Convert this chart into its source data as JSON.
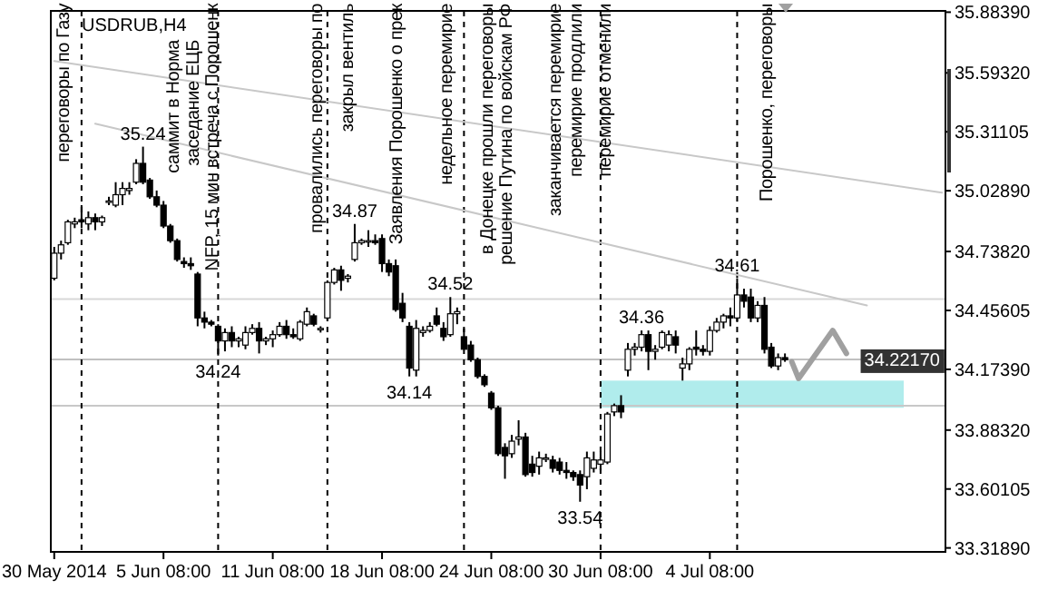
{
  "chart_data": {
    "type": "candlestick",
    "title": "USDRUB,H4",
    "categories": [
      "30 May 2014",
      null,
      null,
      null,
      null,
      null,
      null,
      null,
      null,
      null,
      null,
      null,
      null,
      null,
      null,
      null,
      "5 Jun 08:00",
      null,
      null,
      null,
      null,
      null,
      null,
      null,
      null,
      null,
      null,
      null,
      null,
      null,
      null,
      null,
      "11 Jun 08:00",
      null,
      null,
      null,
      null,
      null,
      null,
      null,
      null,
      null,
      null,
      null,
      null,
      null,
      null,
      null,
      "18 Jun 08:00",
      null,
      null,
      null,
      null,
      null,
      null,
      null,
      null,
      null,
      null,
      null,
      null,
      null,
      null,
      null,
      "24 Jun 08:00",
      null,
      null,
      null,
      null,
      null,
      null,
      null,
      null,
      null,
      null,
      null,
      null,
      null,
      null,
      null,
      "30 Jun 08:00",
      null,
      null,
      null,
      null,
      null,
      null,
      null,
      null,
      null,
      null,
      null,
      null,
      null,
      null,
      null,
      "4 Jul 08:00",
      null,
      null,
      null,
      null,
      null,
      null,
      null,
      null,
      null,
      null,
      null,
      null,
      null,
      null,
      null,
      null,
      null,
      null,
      null,
      null,
      null,
      null,
      null,
      null,
      null,
      null,
      null,
      null,
      null,
      null,
      null,
      null,
      null,
      null
    ],
    "ohlc": [
      [
        34.61,
        34.76,
        34.6,
        34.73
      ],
      [
        34.73,
        34.79,
        34.7,
        34.77
      ],
      [
        34.78,
        34.89,
        34.77,
        34.88
      ],
      [
        34.87,
        34.9,
        34.85,
        34.88
      ],
      [
        34.89,
        34.96,
        34.85,
        34.88
      ],
      [
        34.87,
        34.93,
        34.84,
        34.9
      ],
      [
        34.9,
        34.92,
        34.84,
        34.88
      ],
      [
        34.88,
        34.91,
        34.86,
        34.9
      ],
      [
        34.98,
        35.0,
        34.96,
        34.98
      ],
      [
        34.96,
        35.07,
        34.95,
        35.01
      ],
      [
        35.01,
        35.07,
        34.96,
        35.04
      ],
      [
        35.03,
        35.07,
        35.01,
        35.04
      ],
      [
        35.07,
        35.18,
        35.06,
        35.16
      ],
      [
        35.16,
        35.24,
        35.06,
        35.07
      ],
      [
        35.08,
        35.09,
        34.99,
        35.0
      ],
      [
        35.0,
        35.03,
        34.95,
        34.96
      ],
      [
        34.96,
        34.98,
        34.85,
        34.86
      ],
      [
        34.86,
        34.87,
        34.78,
        34.79
      ],
      [
        34.79,
        34.8,
        34.69,
        34.7
      ],
      [
        34.69,
        34.71,
        34.66,
        34.68
      ],
      [
        34.68,
        34.71,
        34.65,
        34.67
      ],
      [
        34.63,
        34.64,
        34.38,
        34.42
      ],
      [
        34.42,
        34.45,
        34.37,
        34.4
      ],
      [
        34.4,
        34.41,
        34.38,
        34.39
      ],
      [
        34.38,
        34.39,
        34.24,
        34.31
      ],
      [
        34.31,
        34.37,
        34.26,
        34.35
      ],
      [
        34.35,
        34.38,
        34.28,
        34.31
      ],
      [
        34.31,
        34.33,
        34.28,
        34.32
      ],
      [
        34.29,
        34.38,
        34.27,
        34.35
      ],
      [
        34.35,
        34.39,
        34.34,
        34.37
      ],
      [
        34.37,
        34.4,
        34.25,
        34.31
      ],
      [
        34.31,
        34.33,
        34.29,
        34.32
      ],
      [
        34.32,
        34.36,
        34.28,
        34.34
      ],
      [
        34.34,
        34.4,
        34.33,
        34.38
      ],
      [
        34.38,
        34.41,
        34.32,
        34.34
      ],
      [
        34.34,
        34.37,
        34.32,
        34.33
      ],
      [
        34.32,
        34.41,
        34.31,
        34.4
      ],
      [
        34.39,
        34.47,
        34.38,
        34.45
      ],
      [
        34.43,
        34.44,
        34.38,
        34.39
      ],
      [
        34.37,
        34.38,
        34.35,
        34.37
      ],
      [
        34.42,
        34.6,
        34.41,
        34.59
      ],
      [
        34.59,
        34.66,
        34.58,
        34.65
      ],
      [
        34.65,
        34.67,
        34.55,
        34.6
      ],
      [
        34.61,
        34.63,
        34.59,
        34.62
      ],
      [
        34.7,
        34.87,
        34.69,
        34.78
      ],
      [
        34.78,
        34.8,
        34.77,
        34.79
      ],
      [
        34.79,
        34.84,
        34.76,
        34.79
      ],
      [
        34.79,
        34.82,
        34.77,
        34.78
      ],
      [
        34.8,
        34.82,
        34.64,
        34.68
      ],
      [
        34.68,
        34.7,
        34.62,
        34.64
      ],
      [
        34.67,
        34.7,
        34.45,
        34.46
      ],
      [
        34.49,
        34.54,
        34.4,
        34.42
      ],
      [
        34.38,
        34.4,
        34.14,
        34.18
      ],
      [
        34.17,
        34.41,
        34.14,
        34.37
      ],
      [
        34.35,
        34.38,
        34.33,
        34.36
      ],
      [
        34.36,
        34.4,
        34.35,
        34.38
      ],
      [
        34.43,
        34.47,
        34.38,
        34.39
      ],
      [
        34.37,
        34.4,
        34.31,
        34.33
      ],
      [
        34.34,
        34.52,
        34.33,
        34.44
      ],
      [
        34.44,
        34.47,
        34.39,
        34.45
      ],
      [
        34.33,
        34.37,
        34.27,
        34.27
      ],
      [
        34.29,
        34.31,
        34.21,
        34.22
      ],
      [
        34.22,
        34.23,
        34.13,
        34.14
      ],
      [
        34.14,
        34.15,
        34.09,
        34.1
      ],
      [
        34.06,
        34.07,
        33.98,
        33.99
      ],
      [
        33.99,
        34.0,
        33.76,
        33.77
      ],
      [
        33.8,
        33.82,
        33.65,
        33.76
      ],
      [
        33.77,
        33.86,
        33.75,
        33.83
      ],
      [
        33.84,
        33.93,
        33.81,
        33.85
      ],
      [
        33.85,
        33.87,
        33.66,
        33.67
      ],
      [
        33.72,
        33.76,
        33.66,
        33.68
      ],
      [
        33.71,
        33.78,
        33.67,
        33.75
      ],
      [
        33.75,
        33.77,
        33.73,
        33.75
      ],
      [
        33.74,
        33.76,
        33.68,
        33.7
      ],
      [
        33.73,
        33.75,
        33.67,
        33.69
      ],
      [
        33.69,
        33.73,
        33.65,
        33.68
      ],
      [
        33.68,
        33.69,
        33.64,
        33.66
      ],
      [
        33.67,
        33.69,
        33.54,
        33.62
      ],
      [
        33.66,
        33.78,
        33.6,
        33.75
      ],
      [
        33.7,
        33.78,
        33.68,
        33.74
      ],
      [
        33.72,
        33.78,
        33.69,
        33.74
      ],
      [
        33.73,
        33.97,
        33.72,
        33.96
      ],
      [
        33.97,
        34.01,
        33.95,
        34.0
      ],
      [
        34.0,
        34.05,
        33.94,
        33.97
      ],
      [
        34.17,
        34.3,
        34.14,
        34.27
      ],
      [
        34.27,
        34.3,
        34.24,
        34.28
      ],
      [
        34.28,
        34.36,
        34.26,
        34.34
      ],
      [
        34.34,
        34.36,
        34.17,
        34.26
      ],
      [
        34.26,
        34.29,
        34.22,
        34.27
      ],
      [
        34.28,
        34.36,
        34.27,
        34.35
      ],
      [
        34.29,
        34.36,
        34.26,
        34.34
      ],
      [
        34.33,
        34.36,
        34.25,
        34.29
      ],
      [
        34.18,
        34.23,
        34.12,
        34.2
      ],
      [
        34.2,
        34.28,
        34.17,
        34.27
      ],
      [
        34.28,
        34.36,
        34.24,
        34.27
      ],
      [
        34.27,
        34.29,
        34.24,
        34.26
      ],
      [
        34.26,
        34.38,
        34.24,
        34.36
      ],
      [
        34.36,
        34.42,
        34.35,
        34.4
      ],
      [
        34.4,
        34.44,
        34.37,
        34.43
      ],
      [
        34.43,
        34.47,
        34.38,
        34.42
      ],
      [
        34.42,
        34.61,
        34.4,
        34.53
      ],
      [
        34.53,
        34.56,
        34.47,
        34.5
      ],
      [
        34.52,
        34.56,
        34.4,
        34.42
      ],
      [
        34.42,
        34.5,
        34.4,
        34.48
      ],
      [
        34.48,
        34.52,
        34.25,
        34.27
      ],
      [
        34.28,
        34.3,
        34.18,
        34.19
      ],
      [
        34.19,
        34.25,
        34.17,
        34.23
      ],
      [
        34.23,
        34.25,
        34.21,
        34.22
      ],
      null,
      null,
      null,
      null,
      null,
      null,
      null,
      null,
      null,
      null,
      null,
      null,
      null,
      null,
      null,
      null,
      null,
      null,
      null,
      null,
      null,
      null,
      null
    ],
    "series": [
      {
        "type": "line",
        "color": "#c8c8c8",
        "values": [
          35.65,
          null,
          null,
          null,
          null,
          null,
          null,
          null,
          null,
          null,
          null,
          null,
          null,
          null,
          null,
          null,
          null,
          null,
          null,
          null,
          null,
          null,
          null,
          null,
          null,
          null,
          null,
          null,
          null,
          null,
          null,
          null,
          null,
          null,
          null,
          null,
          null,
          null,
          null,
          null,
          null,
          null,
          null,
          null,
          null,
          null,
          null,
          null,
          null,
          null,
          null,
          null,
          null,
          null,
          null,
          null,
          null,
          null,
          null,
          null,
          null,
          null,
          null,
          null,
          null,
          null,
          null,
          null,
          null,
          null,
          null,
          null,
          null,
          null,
          null,
          null,
          null,
          null,
          null,
          null,
          null,
          null,
          null,
          null,
          null,
          null,
          null,
          null,
          null,
          null,
          null,
          null,
          null,
          null,
          null,
          null,
          null,
          null,
          null,
          null,
          null,
          null,
          null,
          null,
          null,
          null,
          null,
          null,
          null,
          null,
          null,
          null,
          null,
          null,
          null,
          null,
          null,
          null,
          null,
          null,
          null,
          null,
          null,
          null,
          null,
          null,
          null,
          null,
          null,
          null,
          35.02
        ]
      },
      {
        "type": "line",
        "color": "#c8c8c8",
        "values": [
          null,
          null,
          null,
          null,
          null,
          null,
          35.35,
          null,
          null,
          null,
          null,
          null,
          null,
          null,
          null,
          null,
          null,
          null,
          null,
          null,
          null,
          null,
          null,
          null,
          null,
          null,
          null,
          null,
          null,
          null,
          null,
          null,
          null,
          null,
          null,
          null,
          null,
          null,
          null,
          null,
          null,
          null,
          null,
          null,
          null,
          null,
          null,
          null,
          null,
          null,
          null,
          null,
          null,
          null,
          null,
          null,
          null,
          null,
          null,
          null,
          null,
          null,
          null,
          null,
          null,
          null,
          null,
          null,
          null,
          null,
          null,
          null,
          null,
          null,
          null,
          null,
          null,
          null,
          null,
          null,
          null,
          null,
          null,
          null,
          null,
          null,
          null,
          null,
          null,
          null,
          null,
          null,
          null,
          null,
          null,
          null,
          null,
          null,
          null,
          null,
          null,
          null,
          null,
          null,
          null,
          null,
          null,
          null,
          null,
          null,
          null,
          null,
          null,
          null,
          null,
          null,
          null,
          null,
          null,
          34.48,
          null,
          null,
          null,
          null,
          null,
          null,
          null,
          null,
          null,
          null,
          null
        ]
      },
      {
        "type": "line",
        "color": "#a0a0a0",
        "values": [
          null,
          null,
          null,
          null,
          null,
          null,
          null,
          null,
          null,
          null,
          null,
          null,
          null,
          null,
          null,
          null,
          null,
          null,
          null,
          null,
          null,
          null,
          null,
          null,
          null,
          null,
          null,
          null,
          null,
          null,
          null,
          null,
          null,
          null,
          null,
          null,
          null,
          null,
          null,
          null,
          null,
          null,
          null,
          null,
          null,
          null,
          null,
          null,
          null,
          null,
          null,
          null,
          null,
          null,
          null,
          null,
          null,
          null,
          null,
          null,
          null,
          null,
          null,
          null,
          null,
          null,
          null,
          null,
          null,
          null,
          null,
          null,
          null,
          null,
          null,
          null,
          null,
          null,
          null,
          null,
          null,
          null,
          null,
          null,
          null,
          null,
          null,
          null,
          null,
          null,
          null,
          null,
          null,
          null,
          null,
          null,
          null,
          null,
          null,
          null,
          null,
          null,
          null,
          null,
          null,
          null,
          null,
          null,
          34.21,
          34.13,
          null,
          null,
          null,
          null,
          34.36,
          null,
          34.25,
          null,
          null,
          null,
          null,
          null,
          null,
          null,
          null,
          null,
          null,
          null,
          null,
          null,
          null
        ]
      }
    ],
    "ylim": [
      33.3,
      35.89
    ],
    "yticks": [
      {
        "value": 33.3189,
        "label": "33.31890"
      },
      {
        "value": 33.60105,
        "label": "33.60105"
      },
      {
        "value": 33.8832,
        "label": "33.88320"
      },
      {
        "value": 34.1739,
        "label": "34.17390"
      },
      {
        "value": 34.45605,
        "label": "34.45605"
      },
      {
        "value": 34.7382,
        "label": "34.73820"
      },
      {
        "value": 35.0289,
        "label": "35.02890"
      },
      {
        "value": 35.31105,
        "label": "35.31105"
      },
      {
        "value": 35.5932,
        "label": "35.59320"
      },
      {
        "value": 35.8839,
        "label": "35.88390"
      }
    ],
    "ref_lines": [
      {
        "axis": "y",
        "value": 34.2217,
        "label": "34.22170",
        "color": "#c0c0c0",
        "line_style": "solid"
      },
      {
        "axis": "y",
        "value": 34.0,
        "color": "#c8c8c8",
        "line_style": "solid"
      },
      {
        "axis": "y",
        "value": 34.51,
        "color": "#d8d8d8",
        "line_style": "solid"
      }
    ],
    "bands": [
      {
        "axis": "y",
        "from": 33.99,
        "to": 34.12,
        "color": "#b0ecec"
      }
    ],
    "annotations": [
      {
        "text": "35.24",
        "y": 35.24
      },
      {
        "text": "34.24",
        "y": 34.24
      },
      {
        "text": "34.87",
        "y": 34.87
      },
      {
        "text": "34.14",
        "y": 34.14
      },
      {
        "text": "34.52",
        "y": 34.52
      },
      {
        "text": "33.54",
        "y": 33.54
      },
      {
        "text": "34.36",
        "y": 34.36
      },
      {
        "text": "34.61",
        "y": 34.61
      },
      "переговоры по Газу",
      "саммит в Норма",
      "заседание ЕЦБ",
      "NFP, 15 мин встреча с Порошенк",
      "провалились переговоры по",
      "закрыл вентиль",
      "Заявления Порошенко о прек",
      "недельное перемирие",
      "в Донецке прошли переговоры",
      "решение Путина по войскам РФ",
      "заканчивается перемирие",
      "перемирие продлили",
      "перемирие отменили",
      "Порошенко, переговоры"
    ]
  }
}
